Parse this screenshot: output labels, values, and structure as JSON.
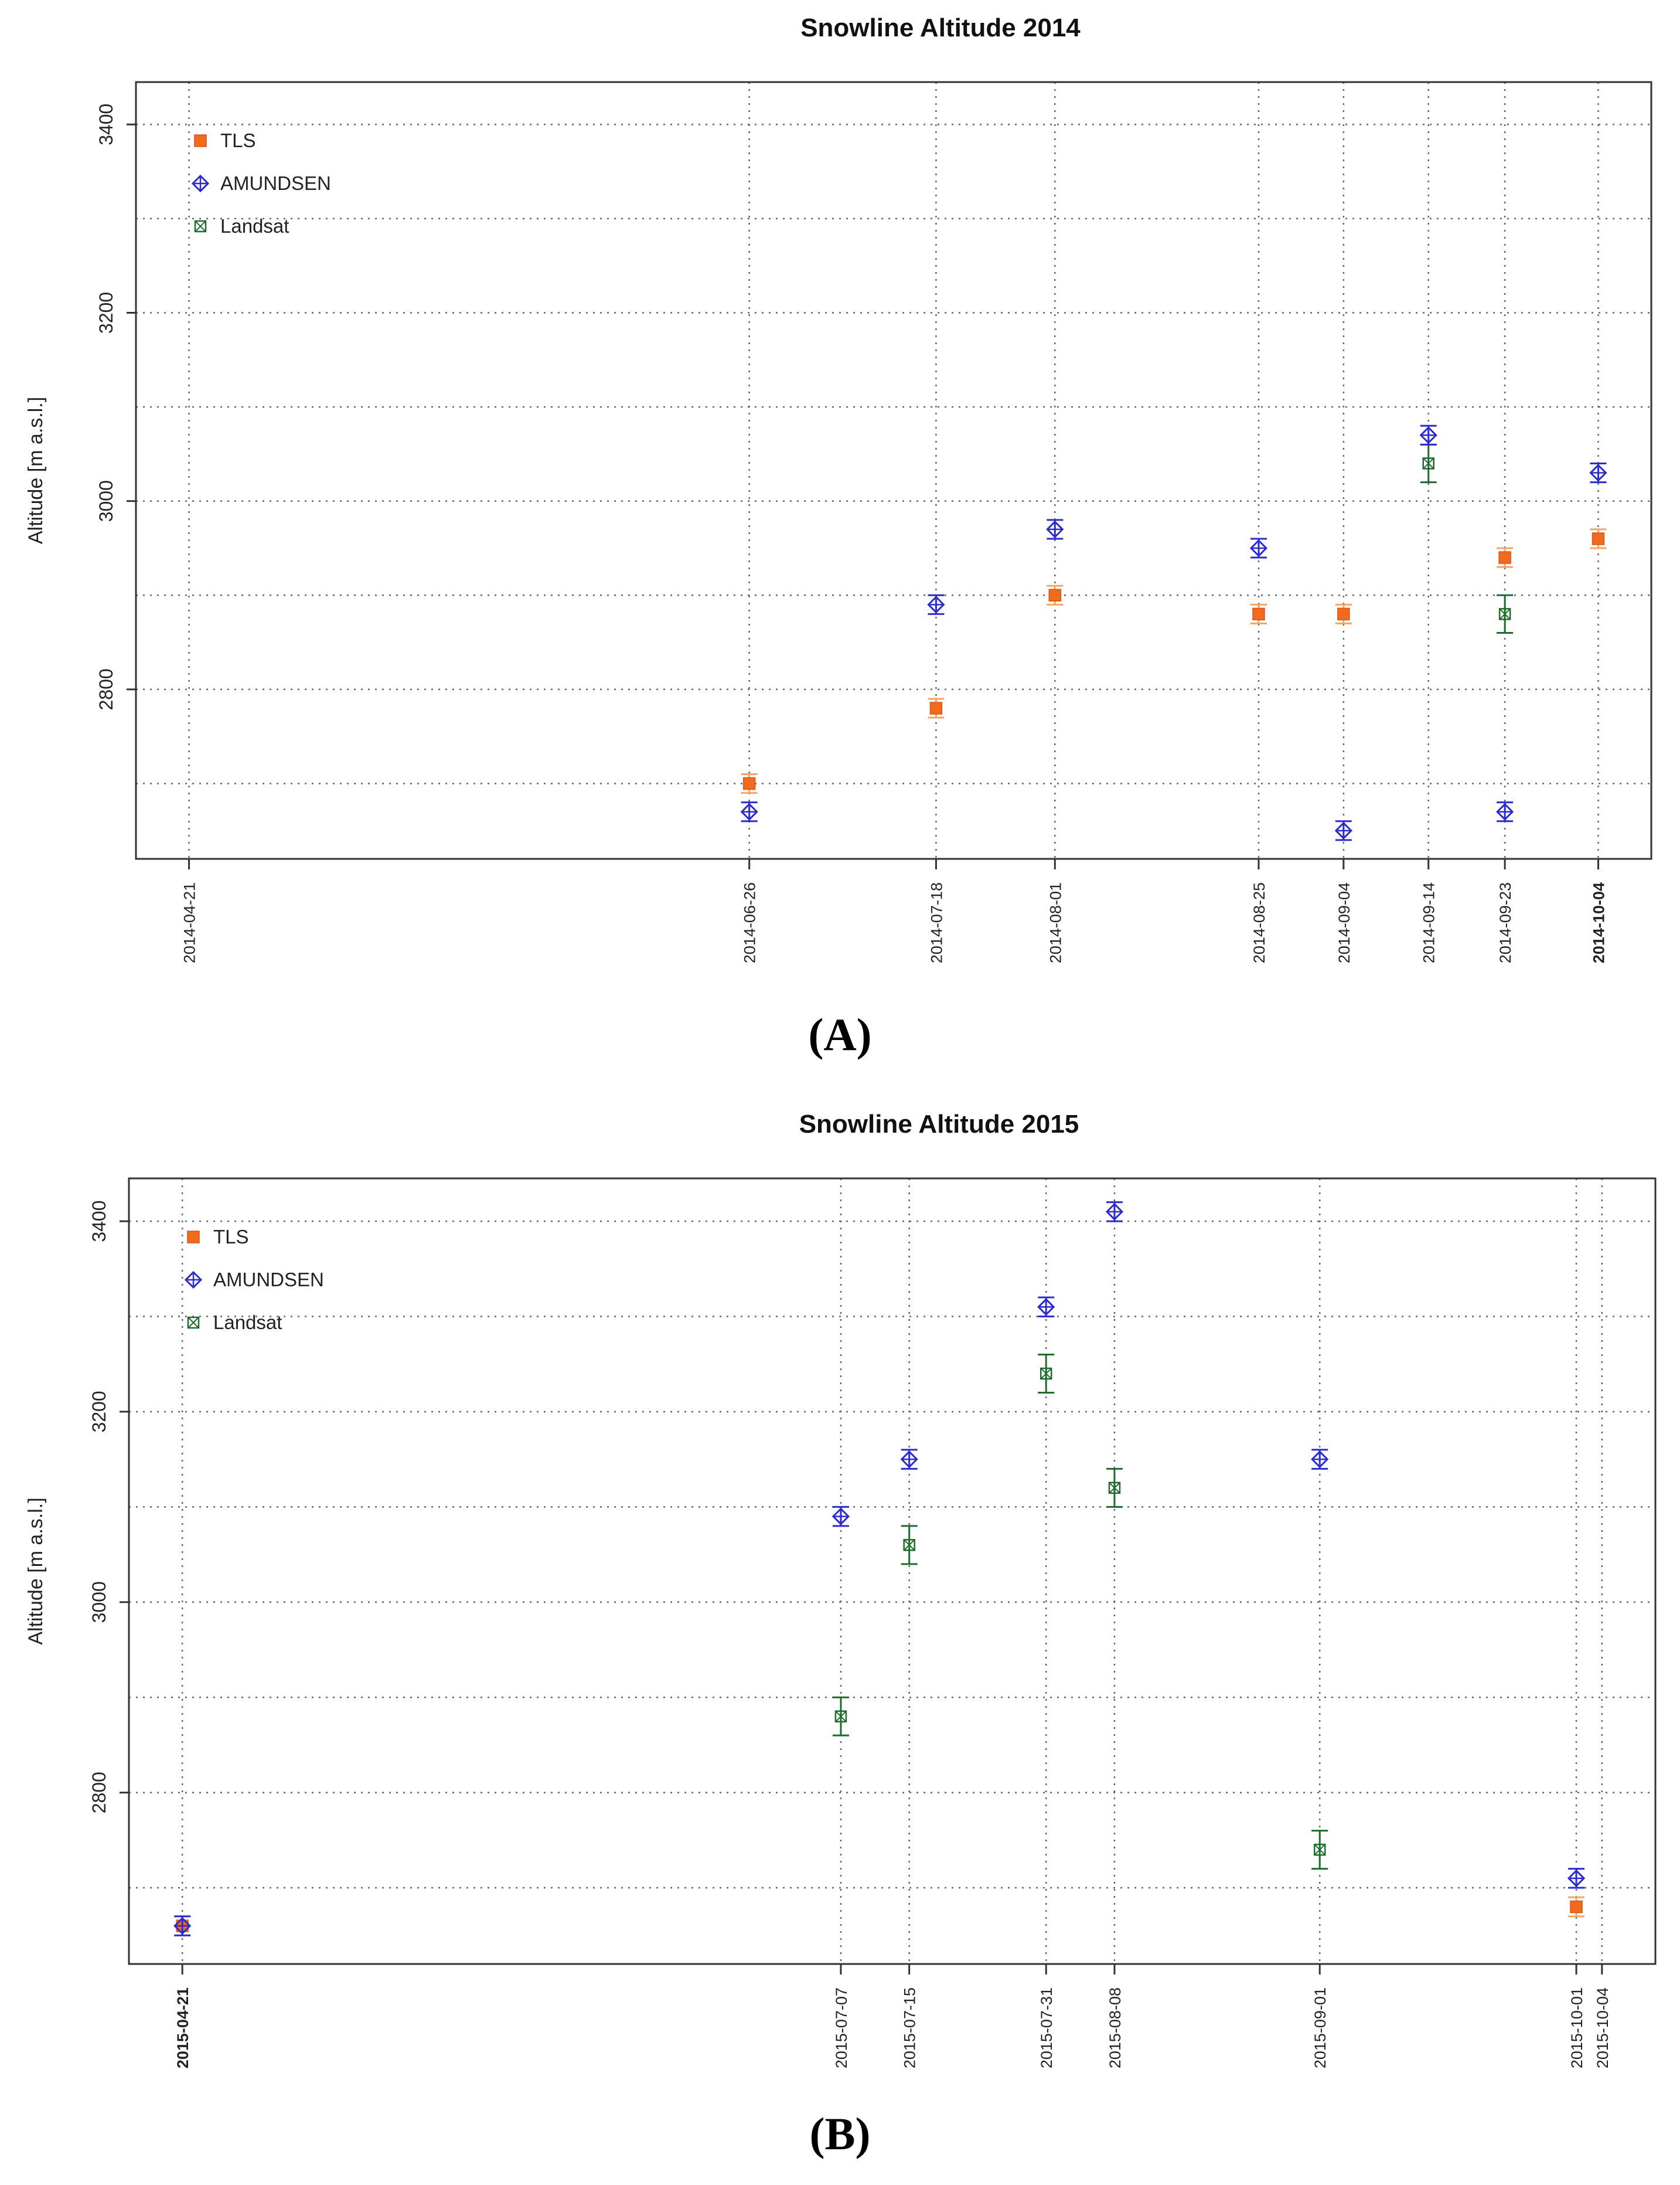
{
  "panels": [
    {
      "caption": "(A)",
      "chart_data": {
        "type": "scatter",
        "title": "Snowline Altitude 2014",
        "xlabel": "",
        "ylabel": "Altitude [m a.s.l.]",
        "ylim": [
          2620,
          3445
        ],
        "yticks": [
          2800,
          3000,
          3200,
          3400
        ],
        "grid": true,
        "legend_position": "top-left",
        "dates": [
          "2014-04-21",
          "2014-06-26",
          "2014-07-18",
          "2014-08-01",
          "2014-08-25",
          "2014-09-04",
          "2014-09-14",
          "2014-09-23",
          "2014-10-04"
        ],
        "bold_dates": [
          "2014-10-04"
        ],
        "series": [
          {
            "name": "TLS",
            "marker": "square-filled",
            "color": "#f26a1b",
            "errcolor": "#f5a55f",
            "points": [
              {
                "x": "2014-06-26",
                "y": 2700,
                "err": 10
              },
              {
                "x": "2014-07-18",
                "y": 2780,
                "err": 10
              },
              {
                "x": "2014-08-01",
                "y": 2900,
                "err": 10
              },
              {
                "x": "2014-08-25",
                "y": 2880,
                "err": 10
              },
              {
                "x": "2014-09-04",
                "y": 2880,
                "err": 10
              },
              {
                "x": "2014-09-23",
                "y": 2940,
                "err": 10
              },
              {
                "x": "2014-10-04",
                "y": 2960,
                "err": 10
              }
            ]
          },
          {
            "name": "AMUNDSEN",
            "marker": "diamond-plus",
            "color": "#2b2bd0",
            "errcolor": "#2b2bd0",
            "points": [
              {
                "x": "2014-06-26",
                "y": 2670,
                "err": 10
              },
              {
                "x": "2014-07-18",
                "y": 2890,
                "err": 10
              },
              {
                "x": "2014-08-01",
                "y": 2970,
                "err": 10
              },
              {
                "x": "2014-08-25",
                "y": 2950,
                "err": 10
              },
              {
                "x": "2014-09-04",
                "y": 2650,
                "err": 10
              },
              {
                "x": "2014-09-14",
                "y": 3070,
                "err": 10
              },
              {
                "x": "2014-09-23",
                "y": 2670,
                "err": 10
              },
              {
                "x": "2014-10-04",
                "y": 3030,
                "err": 10
              }
            ]
          },
          {
            "name": "Landsat",
            "marker": "square-x",
            "color": "#1f6b2b",
            "errcolor": "#1f6b2b",
            "points": [
              {
                "x": "2014-09-14",
                "y": 3040,
                "err": 20
              },
              {
                "x": "2014-09-23",
                "y": 2880,
                "err": 20
              }
            ]
          }
        ]
      }
    },
    {
      "caption": "(B)",
      "chart_data": {
        "type": "scatter",
        "title": "Snowline Altitude 2015",
        "xlabel": "",
        "ylabel": "Altitude [m a.s.l.]",
        "ylim": [
          2620,
          3445
        ],
        "yticks": [
          2800,
          3000,
          3200,
          3400
        ],
        "grid": true,
        "legend_position": "top-left",
        "dates": [
          "2015-04-21",
          "2015-07-07",
          "2015-07-15",
          "2015-07-31",
          "2015-08-08",
          "2015-09-01",
          "2015-10-01",
          "2015-10-04"
        ],
        "bold_dates": [
          "2015-04-21"
        ],
        "series": [
          {
            "name": "TLS",
            "marker": "square-filled",
            "color": "#f26a1b",
            "errcolor": "#f5a55f",
            "points": [
              {
                "x": "2015-04-21",
                "y": 2660,
                "err": 10
              },
              {
                "x": "2015-10-01",
                "y": 2680,
                "err": 10
              }
            ]
          },
          {
            "name": "AMUNDSEN",
            "marker": "diamond-plus",
            "color": "#2b2bd0",
            "errcolor": "#2b2bd0",
            "points": [
              {
                "x": "2015-04-21",
                "y": 2660,
                "err": 10
              },
              {
                "x": "2015-07-07",
                "y": 3090,
                "err": 10
              },
              {
                "x": "2015-07-15",
                "y": 3150,
                "err": 10
              },
              {
                "x": "2015-07-31",
                "y": 3310,
                "err": 10
              },
              {
                "x": "2015-08-08",
                "y": 3410,
                "err": 10
              },
              {
                "x": "2015-09-01",
                "y": 3150,
                "err": 10
              },
              {
                "x": "2015-10-01",
                "y": 2710,
                "err": 10
              }
            ]
          },
          {
            "name": "Landsat",
            "marker": "square-x",
            "color": "#1f6b2b",
            "errcolor": "#1f6b2b",
            "points": [
              {
                "x": "2015-07-07",
                "y": 2880,
                "err": 20
              },
              {
                "x": "2015-07-15",
                "y": 3060,
                "err": 20
              },
              {
                "x": "2015-07-31",
                "y": 3240,
                "err": 20
              },
              {
                "x": "2015-08-08",
                "y": 3120,
                "err": 20
              },
              {
                "x": "2015-09-01",
                "y": 2740,
                "err": 20
              }
            ]
          }
        ]
      }
    }
  ]
}
